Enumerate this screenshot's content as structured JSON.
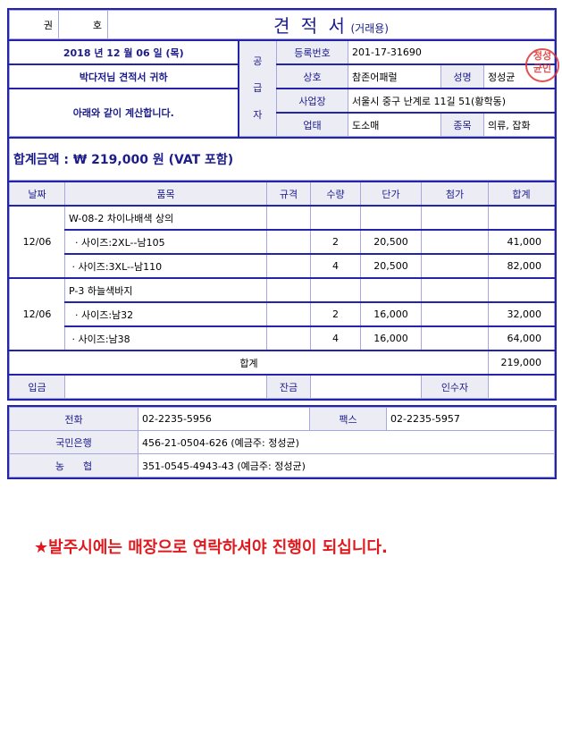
{
  "header": {
    "book_label": "권",
    "number_label": "호",
    "title": "견 적 서",
    "subtitle": "(거래용)"
  },
  "left": {
    "date": "2018 년 12 월 06 일 (목)",
    "recipient": "박다저님 견적서 귀하",
    "message": "아래와 같이 계산합니다."
  },
  "supplier": {
    "label": "공\n급\n자",
    "reg_label": "등록번호",
    "reg_value": "201-17-31690",
    "company_label": "상호",
    "company_value": "참존어패럴",
    "name_label": "성명",
    "name_value": "정성균",
    "address_label": "사업장",
    "address_value": "서울시 중구 난계로 11길 51(황학동)",
    "type_label": "업태",
    "type_value": "도소매",
    "item_label": "종목",
    "item_value": "의류, 잡화",
    "stamp_text": "정성균인"
  },
  "total": {
    "text": "합계금액 : ₩ 219,000 원 (VAT 포함)"
  },
  "items": {
    "headers": [
      "날짜",
      "품목",
      "규격",
      "수량",
      "단가",
      "첨가",
      "합계"
    ],
    "groups": [
      {
        "date": "12/06",
        "rows": [
          {
            "name": "W-08-2 차이나배색 상의",
            "spec": "",
            "qty": "",
            "price": "",
            "add": "",
            "sum": ""
          },
          {
            "name": "  · 사이즈:2XL--남105",
            "spec": "",
            "qty": "2",
            "price": "20,500",
            "add": "",
            "sum": "41,000"
          },
          {
            "name": " · 사이즈:3XL--남110",
            "spec": "",
            "qty": "4",
            "price": "20,500",
            "add": "",
            "sum": "82,000"
          }
        ]
      },
      {
        "date": "12/06",
        "rows": [
          {
            "name": "P-3 하늘색바지",
            "spec": "",
            "qty": "",
            "price": "",
            "add": "",
            "sum": ""
          },
          {
            "name": "  · 사이즈:남32",
            "spec": "",
            "qty": "2",
            "price": "16,000",
            "add": "",
            "sum": "32,000"
          },
          {
            "name": " · 사이즈:남38",
            "spec": "",
            "qty": "4",
            "price": "16,000",
            "add": "",
            "sum": "64,000"
          }
        ]
      }
    ],
    "total_label": "합계",
    "total_value": "219,000",
    "deposit_label": "입금",
    "balance_label": "잔금",
    "receiver_label": "인수자"
  },
  "contact": {
    "phone_label": "전화",
    "phone": "02-2235-5956",
    "fax_label": "팩스",
    "fax": "02-2235-5957",
    "bank1_label": "국민은행",
    "bank1": "456-21-0504-626 (예금주: 정성균)",
    "bank2_label": "농      협",
    "bank2": "351-0545-4943-43 (예금주: 정성균)"
  },
  "note": "★발주시에는 매장으로 연락하셔야 진행이 되십니다."
}
